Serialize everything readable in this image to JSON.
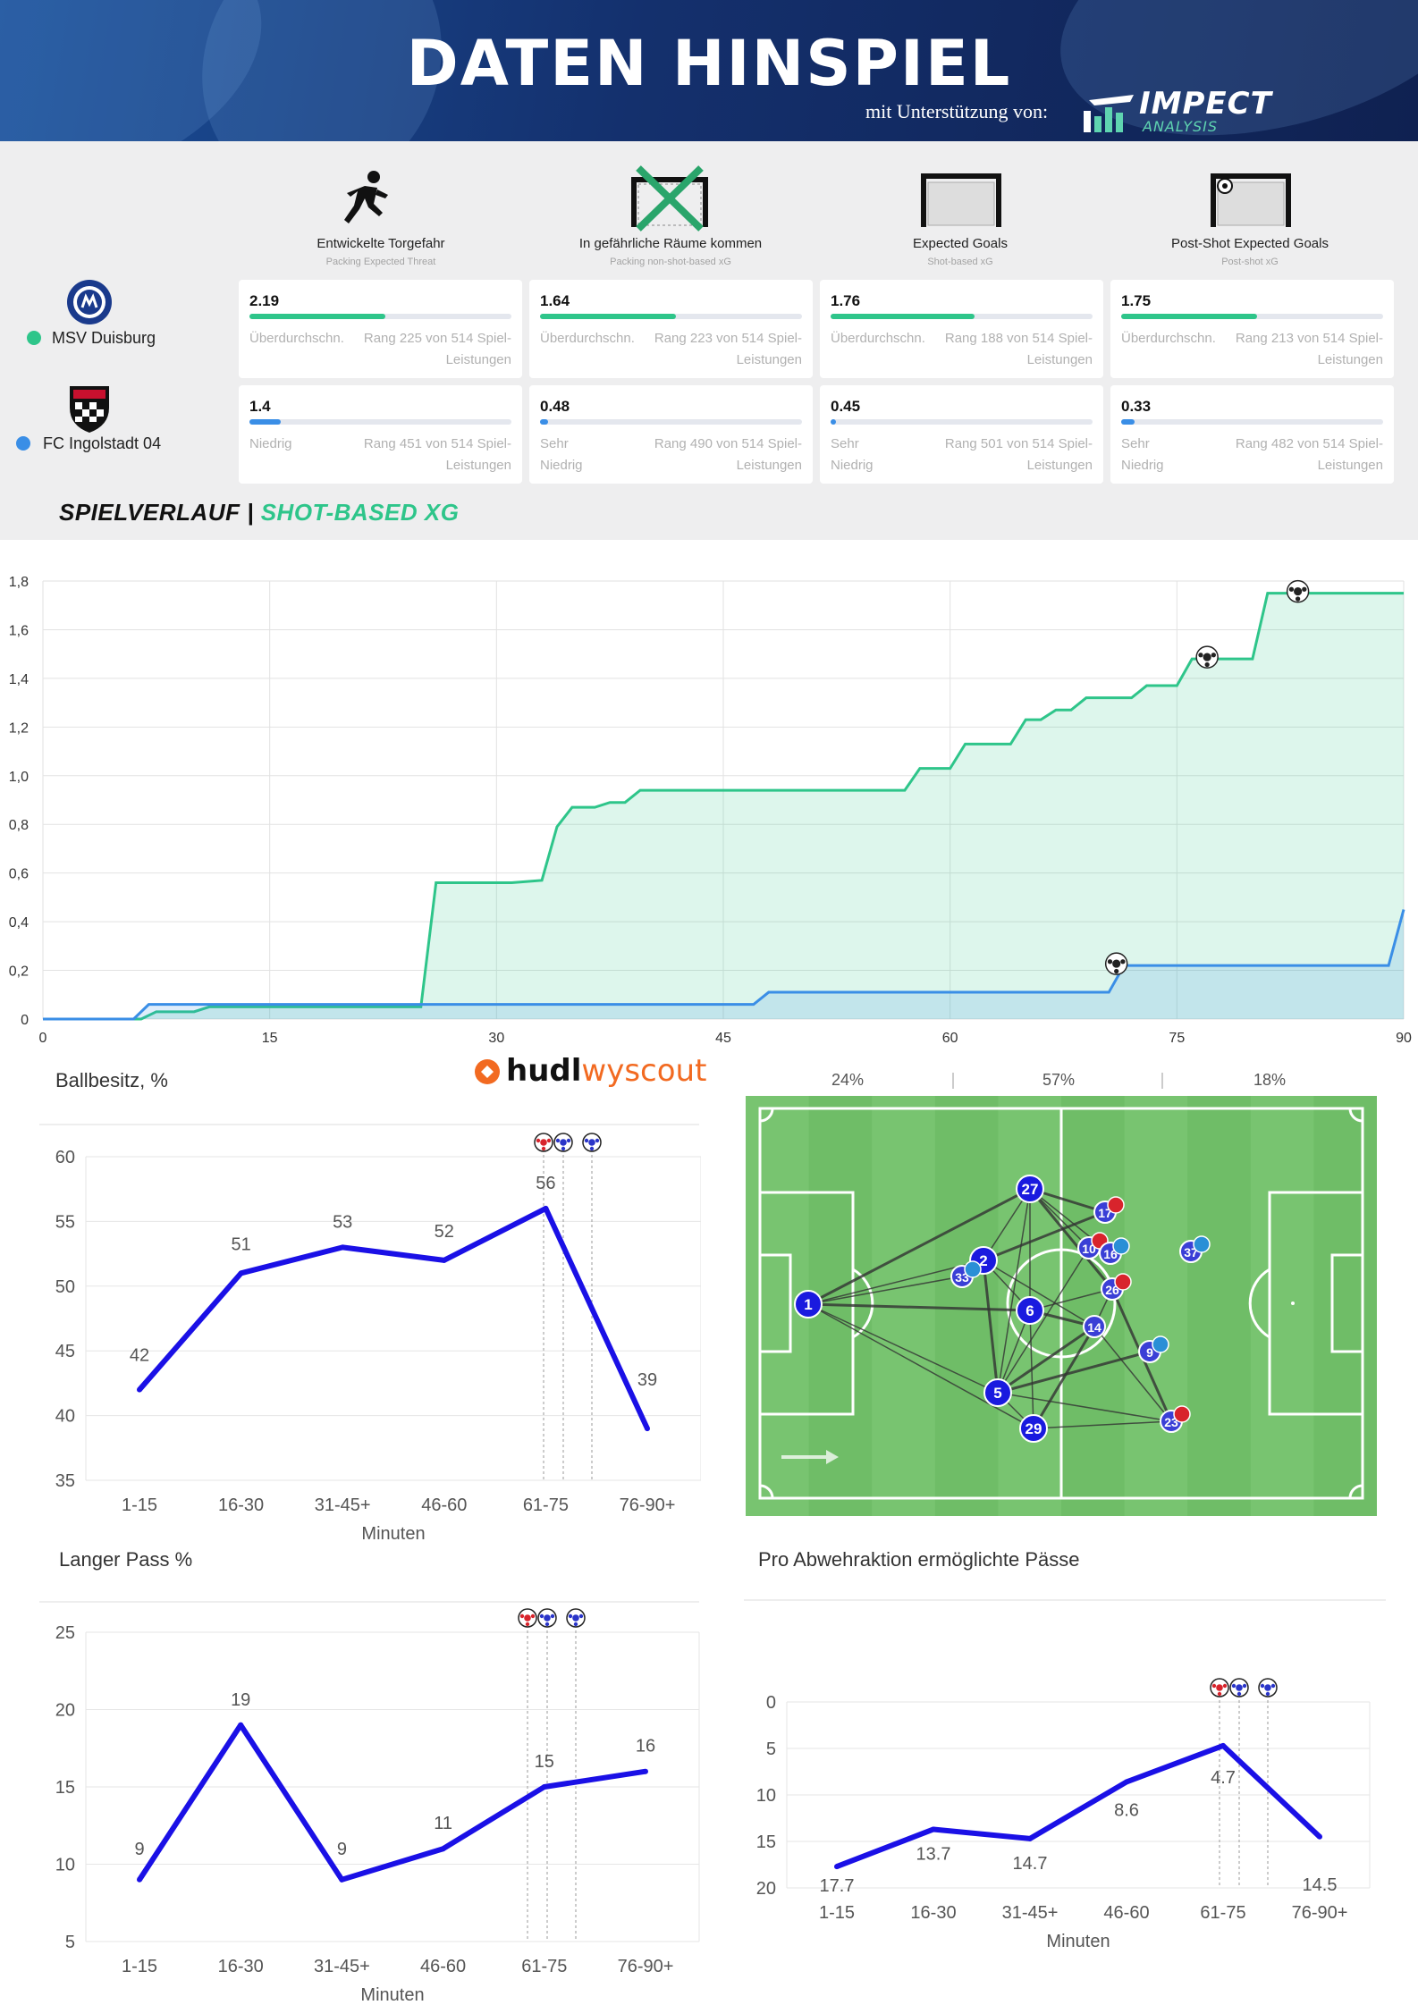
{
  "header": {
    "title": "DATEN HINSPIEL",
    "support_text": "mit Unterstützung von:",
    "logo_text": "IMPECT",
    "logo_sub": "ANALYSIS"
  },
  "colors": {
    "duisburg": "#2ec58a",
    "ingolstadt": "#3a8ee6",
    "chart_line": "#1a10e6",
    "pitch": "#6fbd67"
  },
  "metrics": [
    {
      "title": "Entwickelte Torgefahr",
      "sub": "Packing Expected Threat",
      "icon": "running-person-icon"
    },
    {
      "title": "In gefährliche Räume kommen",
      "sub": "Packing non-shot-based xG",
      "icon": "crossed-goal-icon"
    },
    {
      "title": "Expected Goals",
      "sub": "Shot-based xG",
      "icon": "goal-net-icon"
    },
    {
      "title": "Post-Shot Expected Goals",
      "sub": "Post-shot xG",
      "icon": "goal-ball-icon"
    }
  ],
  "teams": [
    {
      "name": "MSV Duisburg",
      "crest": "msv-crest-icon",
      "cards": [
        {
          "value": "2.19",
          "level": "Überdurchschn.",
          "rank": "Rang 225 von 514 Spiel-Leistungen",
          "fill": 0.52
        },
        {
          "value": "1.64",
          "level": "Überdurchschn.",
          "rank": "Rang 223 von 514 Spiel-Leistungen",
          "fill": 0.52
        },
        {
          "value": "1.76",
          "level": "Überdurchschn.",
          "rank": "Rang 188 von 514 Spiel-Leistungen",
          "fill": 0.55
        },
        {
          "value": "1.75",
          "level": "Überdurchschn.",
          "rank": "Rang 213 von 514 Spiel-Leistungen",
          "fill": 0.52
        }
      ]
    },
    {
      "name": "FC Ingolstadt 04",
      "crest": "fci-crest-icon",
      "cards": [
        {
          "value": "1.4",
          "level": "Niedrig",
          "rank": "Rang 451 von 514 Spiel-Leistungen",
          "fill": 0.12
        },
        {
          "value": "0.48",
          "level": "Sehr Niedrig",
          "rank": "Rang 490 von 514 Spiel-Leistungen",
          "fill": 0.03
        },
        {
          "value": "0.45",
          "level": "Sehr Niedrig",
          "rank": "Rang 501 von 514 Spiel-Leistungen",
          "fill": 0.02
        },
        {
          "value": "0.33",
          "level": "Sehr Niedrig",
          "rank": "Rang 482 von 514 Spiel-Leistungen",
          "fill": 0.05
        }
      ]
    }
  ],
  "section": {
    "part1": "SPIELVERLAUF | ",
    "part2": "SHOT-BASED XG"
  },
  "chart_data": [
    {
      "type": "area",
      "x_ticks": [
        "0",
        "15",
        "30",
        "45",
        "60",
        "75",
        "90"
      ],
      "y_ticks": [
        "0",
        "0,2",
        "0,4",
        "0,6",
        "0,8",
        "1,0",
        "1,2",
        "1,4",
        "1,6",
        "1,8"
      ],
      "xlim": [
        0,
        90
      ],
      "ylim": [
        0,
        1.8
      ],
      "grid": true,
      "series": [
        {
          "team": "MSV Duisburg",
          "color": "#2ec58a",
          "points": [
            [
              0,
              0
            ],
            [
              6.5,
              0
            ],
            [
              7.5,
              0.03
            ],
            [
              10,
              0.03
            ],
            [
              11,
              0.05
            ],
            [
              25,
              0.05
            ],
            [
              26,
              0.56
            ],
            [
              31,
              0.56
            ],
            [
              33,
              0.57
            ],
            [
              34,
              0.79
            ],
            [
              35,
              0.87
            ],
            [
              36.5,
              0.87
            ],
            [
              37.5,
              0.89
            ],
            [
              38.5,
              0.89
            ],
            [
              39.5,
              0.94
            ],
            [
              57,
              0.94
            ],
            [
              58,
              1.03
            ],
            [
              60,
              1.03
            ],
            [
              61,
              1.13
            ],
            [
              64,
              1.13
            ],
            [
              65,
              1.23
            ],
            [
              66,
              1.23
            ],
            [
              67,
              1.27
            ],
            [
              68,
              1.27
            ],
            [
              69,
              1.32
            ],
            [
              72,
              1.32
            ],
            [
              73,
              1.37
            ],
            [
              75,
              1.37
            ],
            [
              76,
              1.48
            ],
            [
              80,
              1.48
            ],
            [
              81,
              1.75
            ],
            [
              90,
              1.75
            ]
          ]
        },
        {
          "team": "FC Ingolstadt 04",
          "color": "#3a8ee6",
          "points": [
            [
              0,
              0
            ],
            [
              6,
              0
            ],
            [
              7,
              0.06
            ],
            [
              47,
              0.06
            ],
            [
              48,
              0.11
            ],
            [
              70.5,
              0.11
            ],
            [
              71.5,
              0.22
            ],
            [
              89,
              0.22
            ],
            [
              90,
              0.45
            ]
          ]
        }
      ],
      "goals": [
        {
          "team": "FC Ingolstadt 04",
          "minute": 71,
          "xg": 0.22
        },
        {
          "team": "MSV Duisburg",
          "minute": 77,
          "xg": 1.48
        },
        {
          "team": "MSV Duisburg",
          "minute": 83,
          "xg": 1.75
        }
      ]
    },
    {
      "type": "line",
      "title": "Ballbesitz, %",
      "xlabel": "Minuten",
      "categories": [
        "1-15",
        "16-30",
        "31-45+",
        "46-60",
        "61-75",
        "76-90+"
      ],
      "values": [
        42,
        51,
        53,
        52,
        56,
        39
      ],
      "ylim": [
        35,
        60
      ],
      "y_ticks": [
        "35",
        "40",
        "45",
        "50",
        "55",
        "60"
      ],
      "goal_markers": [
        "red",
        "blue",
        "blue"
      ]
    },
    {
      "type": "line",
      "title": "Langer Pass %",
      "xlabel": "Minuten",
      "categories": [
        "1-15",
        "16-30",
        "31-45+",
        "46-60",
        "61-75",
        "76-90+"
      ],
      "values": [
        9,
        19,
        9,
        11,
        15,
        16
      ],
      "ylim": [
        5,
        25
      ],
      "y_ticks": [
        "5",
        "10",
        "15",
        "20",
        "25"
      ],
      "goal_markers": [
        "red",
        "blue",
        "blue"
      ]
    },
    {
      "type": "line",
      "title": "Pro Abwehraktion ermöglichte Pässe",
      "xlabel": "Minuten",
      "categories": [
        "1-15",
        "16-30",
        "31-45+",
        "46-60",
        "61-75",
        "76-90+"
      ],
      "values": [
        17.7,
        13.7,
        14.7,
        8.6,
        4.7,
        14.5
      ],
      "value_labels": [
        "17.7",
        "13.7",
        "14.7",
        "8.6",
        "4.7",
        "14.5"
      ],
      "ylim": [
        0,
        20
      ],
      "y_inverted": true,
      "y_ticks": [
        "0",
        "5",
        "10",
        "15",
        "20"
      ],
      "goal_markers": [
        "red",
        "blue",
        "blue"
      ]
    }
  ],
  "hudl": {
    "part1": "hudl",
    "part2": "wyscout"
  },
  "pitch": {
    "zones": [
      "24%",
      "57%",
      "18%"
    ],
    "players": [
      "1",
      "27",
      "2",
      "33",
      "6",
      "5",
      "29",
      "14",
      "17",
      "10",
      "16",
      "26",
      "9",
      "23",
      "37"
    ]
  }
}
